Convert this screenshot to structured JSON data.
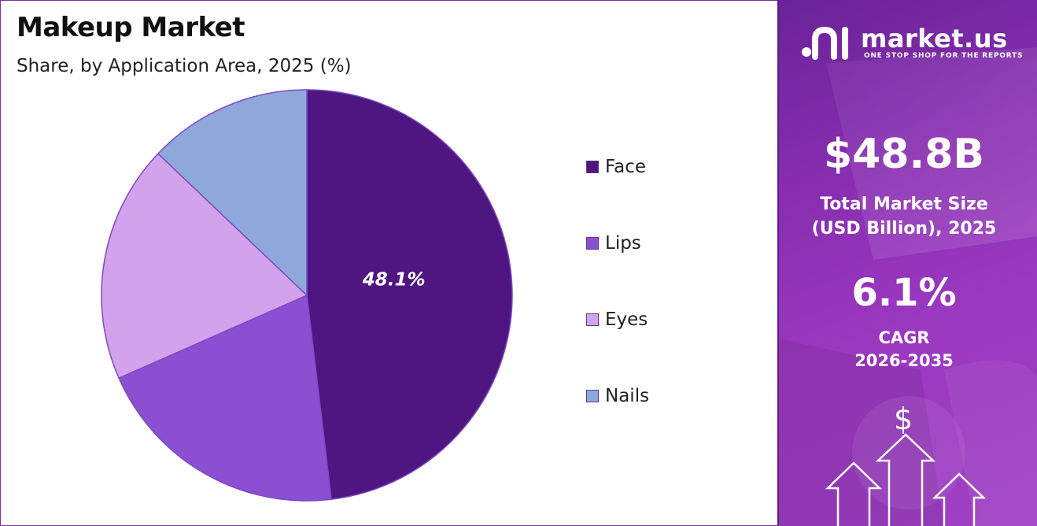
{
  "header": {
    "title": "Makeup Market",
    "subtitle": "Share, by Application Area, 2025 (%)"
  },
  "chart_data": {
    "type": "pie",
    "title": "Makeup Market",
    "subtitle": "Share, by Application Area, 2025 (%)",
    "categories": [
      "Face",
      "Lips",
      "Eyes",
      "Nails"
    ],
    "values": [
      48.1,
      20.3,
      18.7,
      12.9
    ],
    "colors": [
      "#4f1682",
      "#8c4fd2",
      "#d3a2ec",
      "#8ea8dc"
    ],
    "data_labels": [
      "48.1%"
    ],
    "legend_position": "right"
  },
  "panel": {
    "brand_name": "market.us",
    "brand_tagline": "ONE STOP SHOP FOR THE REPORTS",
    "market_size_value": "$48.8B",
    "market_size_label_line1": "Total Market Size",
    "market_size_label_line2": "(USD Billion), 2025",
    "cagr_value": "6.1%",
    "cagr_label_line1": "CAGR",
    "cagr_label_line2": "2026-2035",
    "decor_symbol": "$"
  },
  "icons": [
    "market-us-logo-icon",
    "dollar-icon",
    "arrow-up-icon"
  ],
  "colors": {
    "panel_accent": "#8a2fb2",
    "frame": "#7b2fa0"
  }
}
